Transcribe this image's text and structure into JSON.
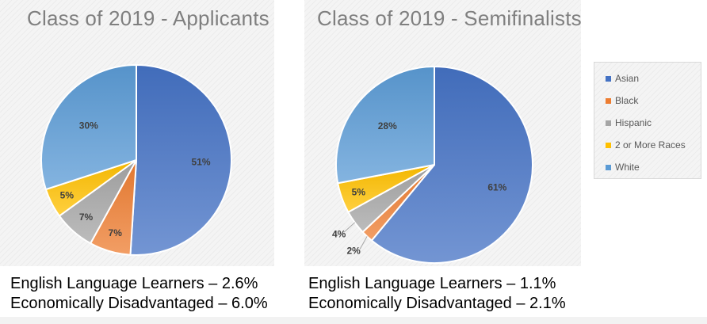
{
  "chart_data": [
    {
      "type": "pie",
      "title": "Class of 2019 - Applicants",
      "categories": [
        "Asian",
        "Black",
        "Hispanic",
        "2 or More Races",
        "White"
      ],
      "values": [
        51,
        7,
        7,
        5,
        30
      ],
      "labels": [
        "51%",
        "7%",
        "7%",
        "5%",
        "30%"
      ]
    },
    {
      "type": "pie",
      "title": "Class of 2019 - Semifinalists",
      "categories": [
        "Asian",
        "Black",
        "Hispanic",
        "2 or More Races",
        "White"
      ],
      "values": [
        61,
        2,
        4,
        5,
        28
      ],
      "labels": [
        "61%",
        "2%",
        "4%",
        "5%",
        "28%"
      ]
    }
  ],
  "legend": {
    "placement": "right",
    "items": [
      {
        "label": "Asian",
        "color": "#4472c4"
      },
      {
        "label": "Black",
        "color": "#ed7d31"
      },
      {
        "label": "Hispanic",
        "color": "#a5a5a5"
      },
      {
        "label": "2 or More Races",
        "color": "#ffc000"
      },
      {
        "label": "White",
        "color": "#5b9bd5"
      }
    ]
  },
  "notes": {
    "applicants": [
      "English Language Learners – 2.6%",
      "Economically Disadvantaged  – 6.0%"
    ],
    "semifinalists": [
      "English Language Learners – 1.1%",
      "Economically Disadvantaged – 2.1%"
    ]
  }
}
